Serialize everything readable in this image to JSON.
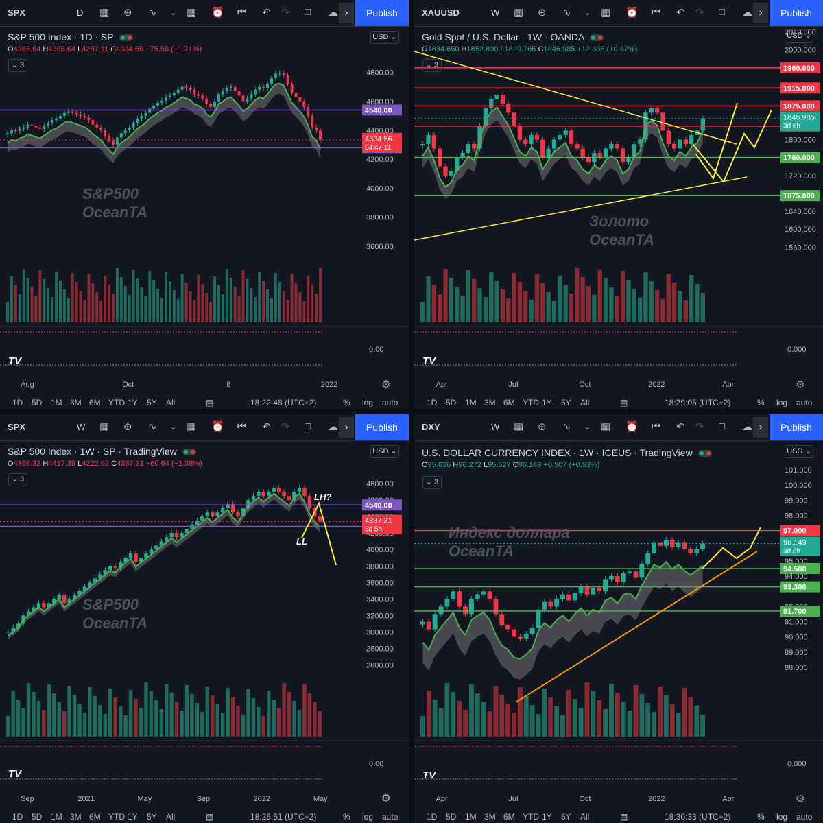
{
  "toolbar": {
    "publish_label": "Publish"
  },
  "bottom_bar": {
    "ranges": [
      "1D",
      "5D",
      "1M",
      "3M",
      "6M",
      "YTD",
      "1Y",
      "5Y",
      "All"
    ],
    "pct": "%",
    "log": "log",
    "auto": "auto"
  },
  "charts": [
    {
      "symbol": "SPX",
      "interval": "D",
      "header": "S&P 500 Index · 1D · SP",
      "ohlc": {
        "o": "4366.64",
        "h": "4366.64",
        "l": "4287.11",
        "c": "4334.56",
        "chg": "−75.58 (−1.71%)"
      },
      "indicators": "3",
      "currency": "USD",
      "watermark": [
        "S&P500",
        "OceanTA"
      ],
      "time": "18:22:48 (UTC+2)",
      "x_ticks": [
        "Aug",
        "Oct",
        "8",
        "2022"
      ],
      "y_ticks": [
        "4800.00",
        "4600.00",
        "4400.00",
        "4200.00",
        "4000.00",
        "3800.00",
        "3600.00"
      ],
      "osc_tick": "0.00",
      "scale_top": "5",
      "levels": [
        {
          "value": "4540.00",
          "color": "#7e57c2"
        },
        {
          "value": "4280.00",
          "color": "#7e57c2"
        }
      ],
      "last": {
        "value": "4334.56",
        "countdown": "04:47:11"
      }
    },
    {
      "symbol": "XAUUSD",
      "interval": "W",
      "header": "Gold Spot / U.S. Dollar · 1W · OANDA",
      "ohlc": {
        "o": "1834.650",
        "h": "1852.890",
        "l": "1829.765",
        "c": "1846.985",
        "chg": "+12.335 (+0.67%)"
      },
      "indicators": "3",
      "currency": "USD",
      "watermark": [
        "Золото",
        "OceanTA"
      ],
      "time": "18:29:05 (UTC+2)",
      "x_ticks": [
        "Apr",
        "Jul",
        "Oct",
        "2022",
        "Apr"
      ],
      "y_ticks": [
        "2040.000",
        "2000.000",
        "1960.000",
        "1915.000",
        "1875.000",
        "1830.000",
        "1800.000",
        "1760.000",
        "1720.000",
        "1675.000",
        "1640.000",
        "1600.000",
        "1560.000"
      ],
      "osc_tick": "0.000",
      "levels": [
        {
          "value": "1960.000",
          "color": "#f23645"
        },
        {
          "value": "1915.000",
          "color": "#f23645"
        },
        {
          "value": "1875.000",
          "color": "#f23645"
        },
        {
          "value": "1830.000",
          "color": "#f23645"
        },
        {
          "value": "1760.000",
          "color": "#4caf50"
        },
        {
          "value": "1675.000",
          "color": "#4caf50"
        }
      ],
      "last": {
        "value": "1846.985",
        "countdown": "3d 6h"
      }
    },
    {
      "symbol": "SPX",
      "interval": "W",
      "header": "S&P 500 Index · 1W · SP · TradingView",
      "ohlc": {
        "o": "4356.32",
        "h": "4417.35",
        "l": "4222.62",
        "c": "4337.31",
        "chg": "−60.64 (−1.38%)"
      },
      "indicators": "3",
      "currency": "USD",
      "watermark": [
        "S&P500",
        "OceanTA"
      ],
      "annotations": [
        "LH?",
        "LL"
      ],
      "time": "18:25:51 (UTC+2)",
      "x_ticks": [
        "Sep",
        "2021",
        "May",
        "Sep",
        "2022",
        "May"
      ],
      "y_ticks": [
        "4800.00",
        "4600.00",
        "4400.00",
        "4200.00",
        "4000.00",
        "3800.00",
        "3600.00",
        "3400.00",
        "3200.00",
        "3000.00",
        "2800.00",
        "2600.00"
      ],
      "osc_tick": "0.00",
      "levels": [
        {
          "value": "4540.00",
          "color": "#7e57c2"
        },
        {
          "value": "4280.00",
          "color": "#7e57c2"
        }
      ],
      "last": {
        "value": "4337.31",
        "countdown": "3d 5h"
      }
    },
    {
      "symbol": "DXY",
      "interval": "W",
      "header": "U.S. DOLLAR CURRENCY INDEX · 1W · ICEUS · TradingView",
      "ohlc": {
        "o": "95.636",
        "h": "96.272",
        "l": "95.627",
        "c": "96.149",
        "chg": "+0.507 (+0.53%)"
      },
      "indicators": "3",
      "currency": "USD",
      "watermark": [
        "Индекс доллара",
        "OceanTA"
      ],
      "time": "18:30:33 (UTC+2)",
      "x_ticks": [
        "Apr",
        "Jul",
        "Oct",
        "2022",
        "Apr"
      ],
      "y_ticks": [
        "101.000",
        "100.000",
        "99.000",
        "98.000",
        "97.000",
        "96.000",
        "95.000",
        "94.000",
        "93.300",
        "92.000",
        "91.700",
        "91.000",
        "90.000",
        "89.000",
        "88.000"
      ],
      "osc_tick": "0.000",
      "levels": [
        {
          "value": "97.000",
          "color": "#f23645"
        },
        {
          "value": "94.500",
          "color": "#4caf50"
        },
        {
          "value": "93.300",
          "color": "#4caf50"
        },
        {
          "value": "91.700",
          "color": "#4caf50"
        }
      ],
      "last": {
        "value": "96.149",
        "countdown": "3d 8h"
      }
    }
  ],
  "chart_data": [
    {
      "type": "candlestick",
      "symbol": "SPX",
      "interval": "1D",
      "ylim": [
        3500,
        4850
      ],
      "close": [
        4380,
        4400,
        4395,
        4410,
        4420,
        4440,
        4430,
        4420,
        4410,
        4430,
        4450,
        4470,
        4480,
        4500,
        4520,
        4530,
        4520,
        4510,
        4500,
        4490,
        4470,
        4440,
        4420,
        4400,
        4360,
        4330,
        4300,
        4350,
        4380,
        4400,
        4420,
        4450,
        4480,
        4500,
        4520,
        4550,
        4570,
        4590,
        4605,
        4630,
        4640,
        4660,
        4680,
        4700,
        4690,
        4680,
        4650,
        4640,
        4620,
        4580,
        4560,
        4600,
        4650,
        4670,
        4690,
        4700,
        4670,
        4640,
        4600,
        4620,
        4650,
        4680,
        4700,
        4690,
        4720,
        4760,
        4790,
        4795,
        4780,
        4720,
        4660,
        4630,
        4600,
        4560,
        4500,
        4420,
        4400,
        4334.56
      ]
    },
    {
      "type": "candlestick",
      "symbol": "XAUUSD",
      "interval": "1W",
      "ylim": [
        1530,
        2050
      ],
      "close": [
        1790,
        1810,
        1780,
        1740,
        1720,
        1730,
        1760,
        1770,
        1790,
        1780,
        1830,
        1870,
        1890,
        1900,
        1880,
        1860,
        1830,
        1800,
        1790,
        1810,
        1800,
        1760,
        1780,
        1800,
        1810,
        1820,
        1790,
        1780,
        1760,
        1750,
        1770,
        1760,
        1780,
        1790,
        1780,
        1750,
        1760,
        1790,
        1800,
        1860,
        1870,
        1860,
        1820,
        1790,
        1780,
        1800,
        1790,
        1810,
        1820,
        1846.985
      ]
    },
    {
      "type": "candlestick",
      "symbol": "SPX",
      "interval": "1W",
      "ylim": [
        2480,
        4850
      ],
      "close": [
        3000,
        3050,
        3100,
        3200,
        3250,
        3300,
        3350,
        3300,
        3350,
        3400,
        3450,
        3350,
        3400,
        3450,
        3500,
        3550,
        3600,
        3650,
        3700,
        3750,
        3800,
        3780,
        3850,
        3900,
        3950,
        3850,
        3900,
        3950,
        4000,
        4050,
        4100,
        4150,
        4200,
        4150,
        4200,
        4250,
        4300,
        4350,
        4400,
        4450,
        4400,
        4450,
        4500,
        4550,
        4450,
        4400,
        4500,
        4600,
        4650,
        4700,
        4650,
        4700,
        4750,
        4700,
        4650,
        4600,
        4700,
        4750,
        4650,
        4500,
        4400,
        4337.31
      ]
    },
    {
      "type": "candlestick",
      "symbol": "DXY",
      "interval": "1W",
      "ylim": [
        87.5,
        101.5
      ],
      "close": [
        91.0,
        90.5,
        91.5,
        92.0,
        92.5,
        93.0,
        92.0,
        91.5,
        92.5,
        92.8,
        93.0,
        92.5,
        91.5,
        90.8,
        90.5,
        90.0,
        89.9,
        90.2,
        90.6,
        91.8,
        92.3,
        92.0,
        92.5,
        92.8,
        92.4,
        92.9,
        93.3,
        92.8,
        93.2,
        93.0,
        93.8,
        94.0,
        93.6,
        94.2,
        94.3,
        93.9,
        94.8,
        95.5,
        96.2,
        96.0,
        96.4,
        95.9,
        96.2,
        95.8,
        95.5,
        95.8,
        96.149
      ]
    }
  ]
}
